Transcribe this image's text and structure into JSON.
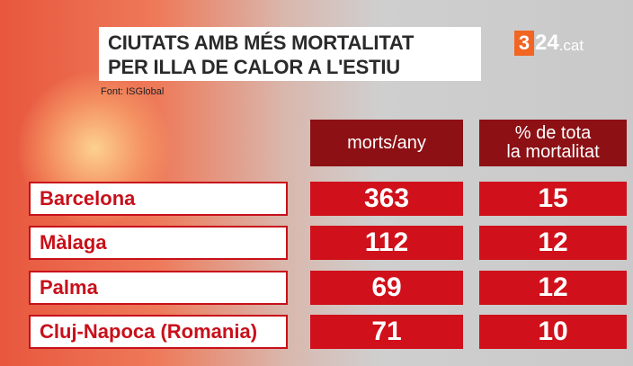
{
  "header": {
    "title": [
      "CIUTATS AMB MÉS MORTALITAT",
      "PER ILLA DE CALOR A L'ESTIU"
    ],
    "source": "Font: ISGlobal",
    "logo": [
      "3",
      "24",
      ".cat"
    ]
  },
  "table": {
    "columns": [
      [
        "morts/any"
      ],
      [
        "% de tota",
        "la mortalitat"
      ]
    ],
    "rows": [
      [
        "Barcelona",
        "363",
        "15"
      ],
      [
        "Màlaga",
        "112",
        "12"
      ],
      [
        "Palma",
        "69",
        "12"
      ],
      [
        "Cluj-Napoca (Romania)",
        "71",
        "10"
      ]
    ]
  }
}
